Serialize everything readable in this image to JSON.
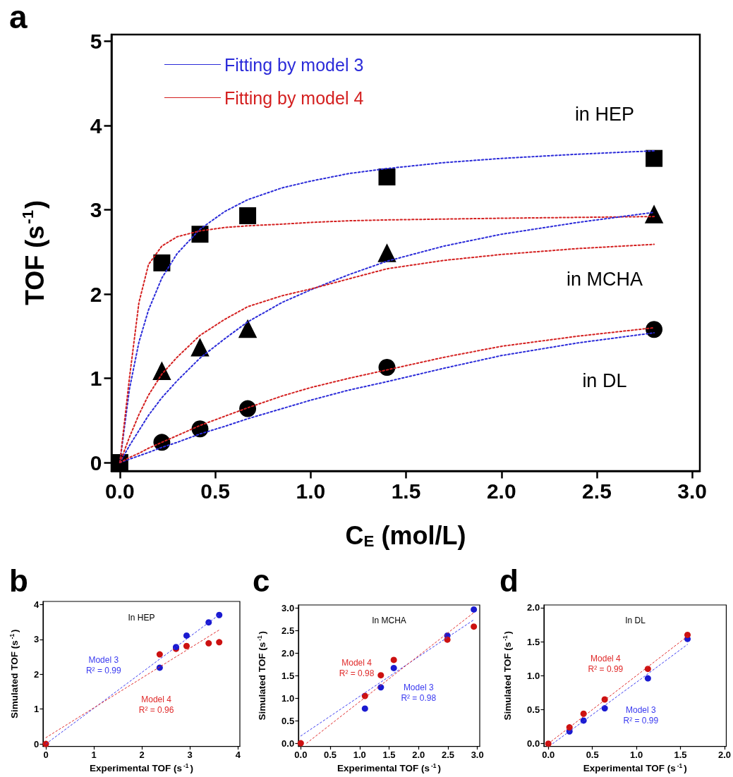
{
  "chart_data": [
    {
      "type": "scatter",
      "title": "a",
      "xlabel": "C$_{E}$ (mol/L)",
      "ylabel": "TOF (s$^{-1}$)",
      "x": [
        0,
        0.22,
        0.42,
        0.67,
        1.4,
        2.8
      ],
      "series": [
        {
          "color": "#000000",
          "marker": "square",
          "values": [
            0,
            2.37,
            2.71,
            2.93,
            3.39,
            3.61
          ]
        },
        {
          "color": "#000000",
          "marker": "triangle",
          "values": [
            null,
            1.09,
            1.37,
            1.59,
            2.49,
            2.95
          ]
        },
        {
          "color": "#000000",
          "marker": "circle",
          "values": [
            null,
            0.24,
            0.4,
            0.64,
            1.13,
            1.58
          ]
        },
        {
          "type": "line",
          "name": "Fitting by model 3",
          "color": "#2b2bd9",
          "marker": "none",
          "line_style": "dotted",
          "x": [
            0,
            0.05,
            0.1,
            0.15,
            0.22,
            0.3,
            0.42,
            0.55,
            0.67,
            0.85,
            1.0,
            1.2,
            1.4,
            1.7,
            2.0,
            2.4,
            2.8
          ],
          "values": [
            0,
            0.87,
            1.43,
            1.81,
            2.19,
            2.48,
            2.77,
            2.98,
            3.12,
            3.26,
            3.34,
            3.43,
            3.49,
            3.56,
            3.61,
            3.66,
            3.7
          ]
        },
        {
          "type": "line",
          "name": "Fitting by model 4",
          "color": "#d42020",
          "marker": "none",
          "line_style": "dotted",
          "x": [
            0,
            0.05,
            0.1,
            0.15,
            0.22,
            0.3,
            0.42,
            0.55,
            0.67,
            0.85,
            1.0,
            1.2,
            1.4,
            1.7,
            2.0,
            2.4,
            2.8
          ],
          "values": [
            0,
            1.0,
            1.9,
            2.35,
            2.57,
            2.68,
            2.75,
            2.79,
            2.81,
            2.83,
            2.85,
            2.87,
            2.88,
            2.89,
            2.9,
            2.91,
            2.92
          ]
        },
        {
          "type": "line",
          "color": "#2b2bd9",
          "marker": "none",
          "line_style": "dotted",
          "x": [
            0,
            0.05,
            0.1,
            0.15,
            0.22,
            0.3,
            0.42,
            0.55,
            0.67,
            0.85,
            1.0,
            1.2,
            1.4,
            1.7,
            2.0,
            2.4,
            2.8
          ],
          "values": [
            0,
            0.2,
            0.38,
            0.56,
            0.77,
            0.97,
            1.24,
            1.47,
            1.67,
            1.9,
            2.05,
            2.23,
            2.39,
            2.57,
            2.71,
            2.85,
            2.97
          ]
        },
        {
          "type": "line",
          "color": "#d42020",
          "marker": "none",
          "line_style": "dotted",
          "x": [
            0,
            0.05,
            0.1,
            0.15,
            0.22,
            0.3,
            0.42,
            0.55,
            0.67,
            0.85,
            1.0,
            1.2,
            1.4,
            1.7,
            2.0,
            2.4,
            2.8
          ],
          "values": [
            0,
            0.3,
            0.57,
            0.8,
            1.05,
            1.25,
            1.51,
            1.7,
            1.85,
            1.98,
            2.06,
            2.18,
            2.3,
            2.4,
            2.47,
            2.54,
            2.59
          ]
        },
        {
          "type": "line",
          "color": "#2b2bd9",
          "marker": "none",
          "line_style": "dotted",
          "x": [
            0,
            0.05,
            0.1,
            0.15,
            0.22,
            0.3,
            0.42,
            0.55,
            0.67,
            0.85,
            1.0,
            1.2,
            1.4,
            1.7,
            2.0,
            2.4,
            2.8
          ],
          "values": [
            0,
            0.04,
            0.08,
            0.12,
            0.18,
            0.24,
            0.34,
            0.43,
            0.52,
            0.64,
            0.74,
            0.86,
            0.96,
            1.12,
            1.27,
            1.42,
            1.54
          ]
        },
        {
          "type": "line",
          "color": "#d42020",
          "marker": "none",
          "line_style": "dotted",
          "x": [
            0,
            0.05,
            0.1,
            0.15,
            0.22,
            0.3,
            0.42,
            0.55,
            0.67,
            0.85,
            1.0,
            1.2,
            1.4,
            1.7,
            2.0,
            2.4,
            2.8
          ],
          "values": [
            0,
            0.06,
            0.11,
            0.17,
            0.24,
            0.32,
            0.44,
            0.55,
            0.65,
            0.79,
            0.89,
            1.0,
            1.1,
            1.25,
            1.38,
            1.5,
            1.6
          ]
        }
      ],
      "annotations": [
        "in HEP",
        "in MCHA",
        "in DL"
      ],
      "xlim": [
        -0.044,
        3.04
      ],
      "ylim": [
        -0.1,
        5.08
      ],
      "xticks": [
        {
          "value": 0,
          "label": "0.0"
        },
        {
          "value": 0.5,
          "label": "0.5"
        },
        {
          "value": 1,
          "label": "1.0"
        },
        {
          "value": 1.5,
          "label": "1.5"
        },
        {
          "value": 2,
          "label": "2.0"
        },
        {
          "value": 2.5,
          "label": "2.5"
        },
        {
          "value": 3,
          "label": "3.0"
        }
      ],
      "yticks": [
        0,
        1,
        2,
        3,
        4,
        5
      ],
      "legend": "top left"
    },
    {
      "type": "scatter",
      "title": "b",
      "xlabel": "Experimental TOF (s$^{-1}$)",
      "ylabel": "Simulated TOF (s$^{-1}$)",
      "x": [
        0,
        2.37,
        2.71,
        2.93,
        3.39,
        3.61
      ],
      "series": [
        {
          "color": "#cc1111",
          "marker": "circle",
          "values": [
            0,
            2.57,
            2.73,
            2.81,
            2.89,
            2.92
          ]
        },
        {
          "color": "#1a1ad0",
          "marker": "circle",
          "values": [
            null,
            2.19,
            2.78,
            3.11,
            3.49,
            3.7
          ]
        },
        {
          "type": "line",
          "name": "Model 3\nR² = 0.99",
          "color": "#3a3af0",
          "marker": "none",
          "line_style": "dotted",
          "x": [
            0,
            1.2,
            3.62
          ],
          "values": [
            0,
            1.23,
            3.72
          ]
        },
        {
          "type": "line",
          "name": "Model 4\nR² = 0.96",
          "color": "#e02a2a",
          "marker": "none",
          "line_style": "dotted",
          "x": [
            0,
            2.3,
            3.62
          ],
          "values": [
            0.18,
            2.15,
            3.28
          ]
        }
      ],
      "annotations": [
        "In HEP"
      ],
      "xlim": [
        -0.06,
        4.04
      ],
      "ylim": [
        -0.07,
        4.09
      ],
      "xticks": [
        0,
        1,
        2,
        3,
        4
      ],
      "yticks": [
        0,
        1,
        2,
        3,
        4
      ]
    },
    {
      "type": "scatter",
      "title": "c",
      "xlabel": "Experimental TOF (s$^{-1}$)",
      "ylabel": "Simulated TOF (s$^{-1}$)",
      "x": [
        0,
        1.09,
        1.36,
        1.58,
        2.49,
        2.94
      ],
      "series": [
        {
          "color": "#1a1ad0",
          "marker": "circle",
          "values": [
            null,
            0.77,
            1.24,
            1.67,
            2.39,
            2.97
          ]
        },
        {
          "color": "#cc1111",
          "marker": "circle",
          "values": [
            0,
            1.05,
            1.51,
            1.85,
            2.3,
            2.59
          ]
        },
        {
          "type": "line",
          "name": "Model 3\nR² = 0.98",
          "color": "#3a3af0",
          "marker": "none",
          "line_style": "dotted",
          "x": [
            0,
            2.0,
            2.94
          ],
          "values": [
            0.16,
            1.92,
            2.74
          ]
        },
        {
          "type": "line",
          "name": "Model 4\nR² = 0.98",
          "color": "#e02a2a",
          "marker": "none",
          "line_style": "dotted",
          "x": [
            0.1,
            0.95,
            2.94
          ],
          "values": [
            0,
            0.87,
            2.9
          ]
        }
      ],
      "annotations": [
        "In MCHA"
      ],
      "xlim": [
        -0.04,
        3.04
      ],
      "ylim": [
        -0.07,
        3.07
      ],
      "xticks": [
        {
          "value": 0,
          "label": "0.0"
        },
        {
          "value": 0.5,
          "label": "0.5"
        },
        {
          "value": 1,
          "label": "1.0"
        },
        {
          "value": 1.5,
          "label": "1.5"
        },
        {
          "value": 2,
          "label": "2.0"
        },
        {
          "value": 2.5,
          "label": "2.5"
        },
        {
          "value": 3,
          "label": "3.0"
        }
      ],
      "yticks": [
        {
          "value": 0,
          "label": "0.0"
        },
        {
          "value": 0.5,
          "label": "0.5"
        },
        {
          "value": 1,
          "label": "1.0"
        },
        {
          "value": 1.5,
          "label": "1.5"
        },
        {
          "value": 2,
          "label": "2.0"
        },
        {
          "value": 2.5,
          "label": "2.5"
        },
        {
          "value": 3,
          "label": "3.0"
        }
      ]
    },
    {
      "type": "scatter",
      "title": "d",
      "xlabel": "Experimental TOF (s$^{-1}$)",
      "ylabel": "Simulated TOF (s$^{-1}$)",
      "x": [
        0,
        0.24,
        0.4,
        0.64,
        1.13,
        1.58
      ],
      "series": [
        {
          "color": "#1a1ad0",
          "marker": "circle",
          "values": [
            null,
            0.18,
            0.34,
            0.52,
            0.96,
            1.54
          ]
        },
        {
          "color": "#cc1111",
          "marker": "circle",
          "values": [
            0,
            0.24,
            0.44,
            0.65,
            1.1,
            1.6
          ]
        },
        {
          "type": "line",
          "name": "Model 3\nR² = 0.99",
          "color": "#3a3af0",
          "marker": "none",
          "line_style": "dotted",
          "x": [
            0.05,
            1.05,
            1.58
          ],
          "values": [
            0,
            0.95,
            1.46
          ]
        },
        {
          "type": "line",
          "name": "Model 4\nR² = 0.99",
          "color": "#e02a2a",
          "marker": "none",
          "line_style": "dotted",
          "x": [
            0,
            0.65,
            1.58
          ],
          "values": [
            0,
            0.65,
            1.58
          ]
        }
      ],
      "annotations": [
        "In DL"
      ],
      "xlim": [
        -0.05,
        2.02
      ],
      "ylim": [
        -0.04,
        2.04
      ],
      "xticks": [
        {
          "value": 0,
          "label": "0.0"
        },
        {
          "value": 0.5,
          "label": "0.5"
        },
        {
          "value": 1,
          "label": "1.0"
        },
        {
          "value": 1.5,
          "label": "1.5"
        },
        {
          "value": 2,
          "label": "2.0"
        }
      ],
      "yticks": [
        {
          "value": 0,
          "label": "0.0"
        },
        {
          "value": 0.5,
          "label": "0.5"
        },
        {
          "value": 1,
          "label": "1.0"
        },
        {
          "value": 1.5,
          "label": "1.5"
        },
        {
          "value": 2,
          "label": "2.0"
        }
      ]
    }
  ]
}
